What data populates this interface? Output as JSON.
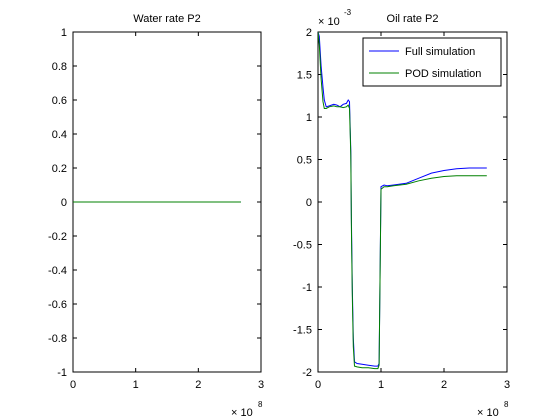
{
  "figure": {
    "background": "#ffffff"
  },
  "chart_data": [
    {
      "type": "line",
      "title": "Water rate P2",
      "xlabel": "",
      "ylabel": "",
      "xlim": [
        0,
        3
      ],
      "ylim": [
        -1,
        1
      ],
      "xticks": [
        0,
        1,
        2,
        3
      ],
      "xtick_labels": [
        "0",
        "1",
        "2",
        "3"
      ],
      "yticks": [
        -1,
        -0.8,
        -0.6,
        -0.4,
        -0.2,
        0,
        0.2,
        0.4,
        0.6,
        0.8,
        1
      ],
      "ytick_labels": [
        "-1",
        "-0.8",
        "-0.6",
        "-0.4",
        "-0.2",
        "0",
        "0.2",
        "0.4",
        "0.6",
        "0.8",
        "1"
      ],
      "x_exponent_label": "× 10",
      "x_exponent_power": "8",
      "grid": false,
      "series": [
        {
          "color": "#0000ff",
          "x": [
            0,
            0.25,
            0.5,
            1.0,
            1.5,
            2.0,
            2.5,
            2.68
          ],
          "y": [
            0,
            0,
            0,
            0,
            0,
            0,
            0,
            0
          ]
        },
        {
          "color": "#008000",
          "x": [
            0,
            0.25,
            0.5,
            1.0,
            1.5,
            2.0,
            2.5,
            2.68
          ],
          "y": [
            0,
            0,
            0,
            0,
            0,
            0,
            0,
            0
          ]
        }
      ]
    },
    {
      "type": "line",
      "title": "Oil rate P2",
      "xlabel": "",
      "ylabel": "",
      "xlim": [
        0,
        3
      ],
      "ylim": [
        -2,
        2
      ],
      "xticks": [
        0,
        1,
        2,
        3
      ],
      "xtick_labels": [
        "0",
        "1",
        "2",
        "3"
      ],
      "yticks": [
        -2,
        -1.5,
        -1,
        -0.5,
        0,
        0.5,
        1,
        1.5,
        2
      ],
      "ytick_labels": [
        "-2",
        "-1.5",
        "-1",
        "-0.5",
        "0",
        "0.5",
        "1",
        "1.5",
        "2"
      ],
      "x_exponent_label": "× 10",
      "x_exponent_power": "8",
      "y_exponent_label": "× 10",
      "y_exponent_power": "-3",
      "grid": false,
      "legend_position": "top-right",
      "series": [
        {
          "name": "Full simulation",
          "color": "#0000ff",
          "x": [
            0,
            0.02,
            0.05,
            0.08,
            0.1,
            0.13,
            0.18,
            0.25,
            0.3,
            0.35,
            0.4,
            0.45,
            0.48,
            0.5,
            0.52,
            0.53,
            0.545,
            0.56,
            0.58,
            0.62,
            0.7,
            0.8,
            0.9,
            0.95,
            0.97,
            1.0,
            1.05,
            1.1,
            1.2,
            1.4,
            1.6,
            1.8,
            2.0,
            2.2,
            2.4,
            2.68
          ],
          "y": [
            2.0,
            1.95,
            1.6,
            1.35,
            1.2,
            1.12,
            1.13,
            1.15,
            1.14,
            1.12,
            1.15,
            1.16,
            1.2,
            1.18,
            0.6,
            -0.2,
            -1.0,
            -1.6,
            -1.88,
            -1.9,
            -1.91,
            -1.92,
            -1.93,
            -1.93,
            -1.9,
            0.18,
            0.2,
            0.19,
            0.2,
            0.22,
            0.28,
            0.34,
            0.37,
            0.39,
            0.4,
            0.4
          ]
        },
        {
          "name": "POD simulation",
          "color": "#008000",
          "x": [
            0,
            0.02,
            0.05,
            0.08,
            0.1,
            0.13,
            0.18,
            0.25,
            0.3,
            0.35,
            0.4,
            0.45,
            0.48,
            0.5,
            0.52,
            0.53,
            0.545,
            0.56,
            0.58,
            0.62,
            0.7,
            0.8,
            0.9,
            0.95,
            0.97,
            1.0,
            1.05,
            1.1,
            1.2,
            1.4,
            1.6,
            1.8,
            2.0,
            2.2,
            2.4,
            2.68
          ],
          "y": [
            2.0,
            1.85,
            1.45,
            1.18,
            1.1,
            1.1,
            1.12,
            1.13,
            1.12,
            1.12,
            1.11,
            1.12,
            1.14,
            1.1,
            0.55,
            -0.3,
            -1.1,
            -1.7,
            -1.93,
            -1.94,
            -1.95,
            -1.95,
            -1.96,
            -1.96,
            -1.92,
            0.15,
            0.18,
            0.18,
            0.19,
            0.21,
            0.25,
            0.28,
            0.3,
            0.31,
            0.31,
            0.31
          ]
        }
      ]
    }
  ]
}
